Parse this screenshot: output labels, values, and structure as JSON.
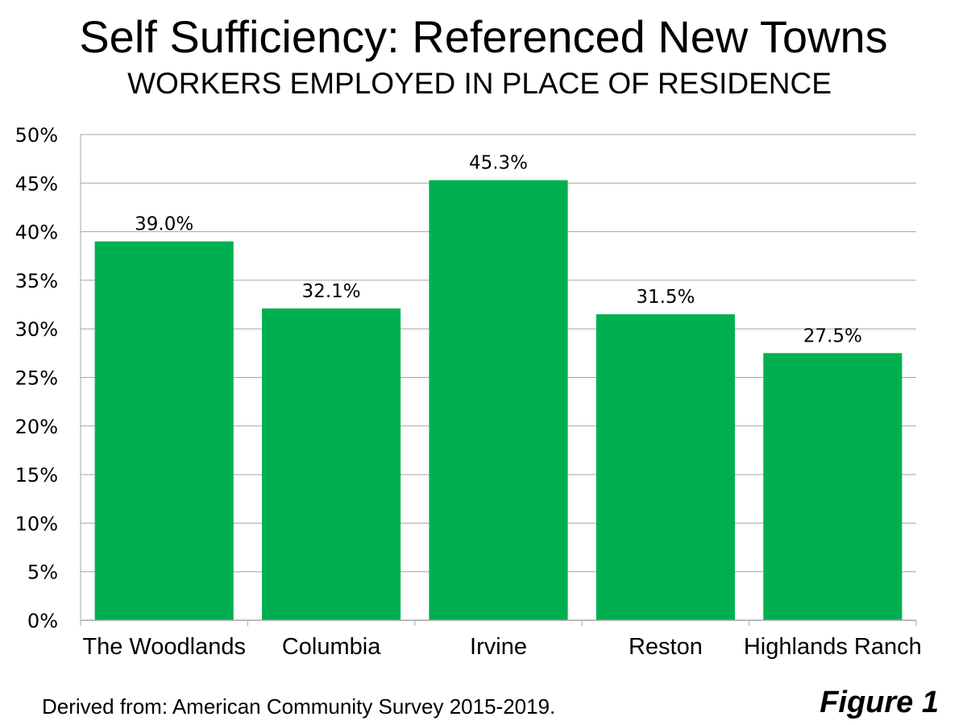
{
  "chart_data": {
    "type": "bar",
    "title": "Self Sufficiency: Referenced New Towns",
    "subtitle": "WORKERS EMPLOYED IN PLACE OF RESIDENCE",
    "categories": [
      "The Woodlands",
      "Columbia",
      "Irvine",
      "Reston",
      "Highlands Ranch"
    ],
    "values": [
      39.0,
      32.1,
      45.3,
      31.5,
      27.5
    ],
    "value_labels": [
      "39.0%",
      "32.1%",
      "45.3%",
      "31.5%",
      "27.5%"
    ],
    "xlabel": "",
    "ylabel": "",
    "ylim": [
      0,
      50
    ],
    "yticks": [
      0,
      5,
      10,
      15,
      20,
      25,
      30,
      35,
      40,
      45,
      50
    ],
    "ytick_labels": [
      "0%",
      "5%",
      "10%",
      "15%",
      "20%",
      "25%",
      "30%",
      "35%",
      "40%",
      "45%",
      "50%"
    ],
    "grid": true,
    "legend": "none",
    "bar_color": "#00b050",
    "grid_color": "#a6a6a6"
  },
  "footer": {
    "source": "Derived from: American Community Survey 2015-2019.",
    "figure_label": "Figure 1"
  }
}
